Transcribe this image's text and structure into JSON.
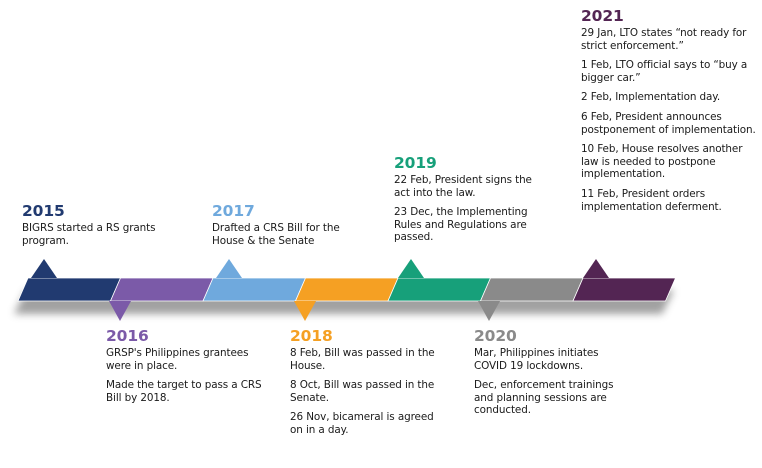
{
  "timeline": [
    {
      "year": "2015",
      "color": "#213a70",
      "position": "above",
      "events": [
        "BIGRS started a RS grants program."
      ]
    },
    {
      "year": "2016",
      "color": "#7b5aa8",
      "position": "below",
      "events": [
        "GRSP's Philippines grantees were in place.",
        "Made the target to pass a CRS Bill by 2018."
      ]
    },
    {
      "year": "2017",
      "color": "#6fa9dd",
      "position": "above",
      "events": [
        "Drafted a CRS Bill for the House & the Senate"
      ]
    },
    {
      "year": "2018",
      "color": "#f5a023",
      "position": "below",
      "events": [
        "8 Feb, Bill was passed in the House.",
        "8 Oct, Bill was passed in the Senate.",
        "26 Nov, bicameral is agreed on in a day."
      ]
    },
    {
      "year": "2019",
      "color": "#17a07a",
      "position": "above",
      "events": [
        "22 Feb, President signs the act into the law.",
        "23 Dec, the Implementing Rules and Regulations are passed."
      ]
    },
    {
      "year": "2020",
      "color": "#8a8a8a",
      "position": "below",
      "events": [
        "Mar, Philippines initiates COVID 19 lockdowns.",
        "Dec, enforcement trainings and planning sessions are conducted."
      ]
    },
    {
      "year": "2021",
      "color": "#532553",
      "position": "above",
      "events": [
        "29 Jan, LTO states “not ready for strict enforcement.”",
        "1 Feb, LTO official says to “buy a bigger car.”",
        "2 Feb, Implementation day.",
        "6 Feb, President announces postponement of implementation.",
        "10 Feb, House resolves another law is needed to postpone implementation.",
        "11 Feb, President orders implementation deferment."
      ]
    }
  ]
}
